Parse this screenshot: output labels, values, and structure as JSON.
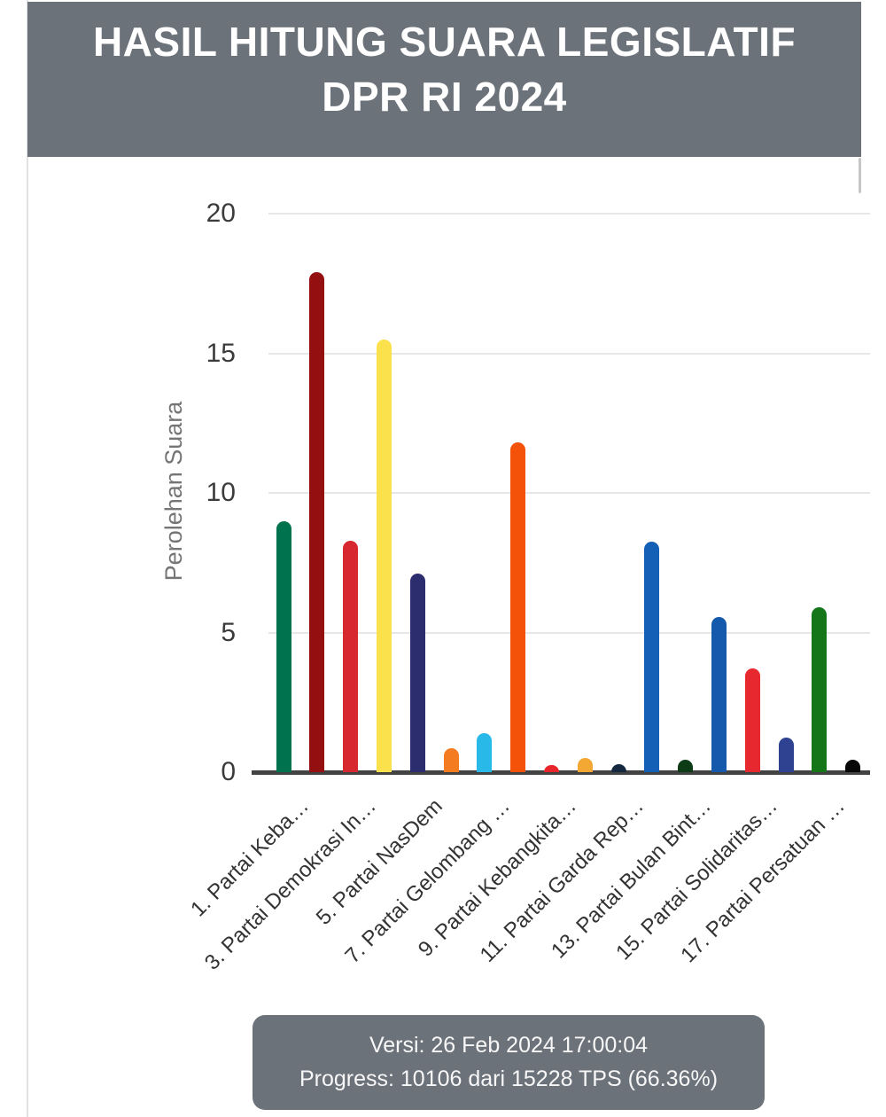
{
  "header": {
    "title_line1": "HASIL HITUNG SUARA LEGISLATIF",
    "title_line2": "DPR RI 2024",
    "bg_color": "#6c727a",
    "text_color": "#ffffff"
  },
  "footer": {
    "version_label": "Versi: 26 Feb 2024 17:00:04",
    "progress_label": "Progress: 10106 dari 15228 TPS (66.36%)",
    "bg_color": "#6c727a",
    "text_color": "#f7f7f7"
  },
  "chart_data": {
    "type": "bar",
    "title": "",
    "xlabel": "",
    "ylabel": "Perolehan Suara",
    "ylim": [
      0,
      20
    ],
    "yticks": [
      0,
      5,
      10,
      15,
      20
    ],
    "grid": true,
    "legend": "none",
    "axis_color": "#424242",
    "gridline_color": "#e7e7e7",
    "bars": [
      {
        "index": 1,
        "label": "1. Partai Keba…",
        "value": 9.0,
        "color": "#00724d"
      },
      {
        "index": 2,
        "label": "",
        "value": 17.9,
        "color": "#940f10"
      },
      {
        "index": 3,
        "label": "3. Partai Demokrasi In…",
        "value": 8.3,
        "color": "#d7282f"
      },
      {
        "index": 4,
        "label": "",
        "value": 15.5,
        "color": "#fbe14c"
      },
      {
        "index": 5,
        "label": "5. Partai NasDem",
        "value": 7.1,
        "color": "#2b2d6e"
      },
      {
        "index": 6,
        "label": "",
        "value": 0.85,
        "color": "#f47b20"
      },
      {
        "index": 7,
        "label": "7. Partai Gelombang …",
        "value": 1.4,
        "color": "#29b9e9"
      },
      {
        "index": 8,
        "label": "",
        "value": 11.8,
        "color": "#f55209"
      },
      {
        "index": 9,
        "label": "9. Partai Kebangkita…",
        "value": 0.25,
        "color": "#e9252c"
      },
      {
        "index": 10,
        "label": "",
        "value": 0.5,
        "color": "#f2a832"
      },
      {
        "index": 11,
        "label": "11. Partai Garda Rep…",
        "value": 0.3,
        "color": "#142940"
      },
      {
        "index": 12,
        "label": "",
        "value": 8.25,
        "color": "#1560b7"
      },
      {
        "index": 13,
        "label": "13. Partai Bulan Bint…",
        "value": 0.45,
        "color": "#0c3b16"
      },
      {
        "index": 14,
        "label": "",
        "value": 5.55,
        "color": "#1459ac"
      },
      {
        "index": 15,
        "label": "15. Partai Solidaritas…",
        "value": 3.7,
        "color": "#e8282f"
      },
      {
        "index": 16,
        "label": "",
        "value": 1.25,
        "color": "#2e4291"
      },
      {
        "index": 17,
        "label": "17. Partai Persatuan …",
        "value": 5.9,
        "color": "#157519"
      },
      {
        "index": 18,
        "label": "",
        "value": 0.45,
        "color": "#070707"
      }
    ]
  }
}
